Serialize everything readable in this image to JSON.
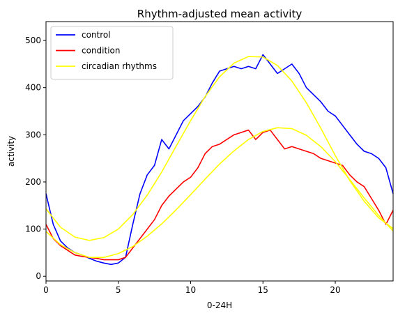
{
  "chart_data": {
    "type": "line",
    "title": "Rhythm-adjusted mean activity",
    "xlabel": "0-24H",
    "ylabel": "activity",
    "xlim": [
      0,
      24
    ],
    "ylim": [
      -10,
      540
    ],
    "xticks": [
      0,
      5,
      10,
      15,
      20
    ],
    "xtick_labels": [
      "0",
      "5",
      "10",
      "15",
      "20"
    ],
    "yticks": [
      0,
      100,
      200,
      300,
      400,
      500
    ],
    "ytick_labels": [
      "0",
      "100",
      "200",
      "300",
      "400",
      "500"
    ],
    "grid": false,
    "legend_position": "top-left",
    "series": [
      {
        "name": "control",
        "color": "#0000ff",
        "x": [
          0,
          0.5,
          1,
          1.5,
          2,
          2.5,
          3,
          3.5,
          4,
          4.5,
          5,
          5.5,
          6,
          6.5,
          7,
          7.5,
          8,
          8.5,
          9,
          9.5,
          10,
          10.5,
          11,
          11.5,
          12,
          12.5,
          13,
          13.5,
          14,
          14.5,
          15,
          15.5,
          16,
          16.5,
          17,
          17.5,
          18,
          18.5,
          19,
          19.5,
          20,
          20.5,
          21,
          21.5,
          22,
          22.5,
          23,
          23.5,
          24
        ],
        "y": [
          175,
          110,
          75,
          60,
          50,
          45,
          38,
          32,
          28,
          25,
          28,
          40,
          110,
          175,
          215,
          235,
          290,
          270,
          300,
          330,
          345,
          360,
          380,
          410,
          435,
          440,
          445,
          440,
          445,
          440,
          470,
          450,
          430,
          440,
          450,
          430,
          400,
          385,
          370,
          350,
          340,
          320,
          300,
          280,
          265,
          260,
          250,
          230,
          175
        ]
      },
      {
        "name": "condition",
        "color": "#ff0000",
        "x": [
          0,
          0.5,
          1,
          1.5,
          2,
          2.5,
          3,
          3.5,
          4,
          4.5,
          5,
          5.5,
          6,
          6.5,
          7,
          7.5,
          8,
          8.5,
          9,
          9.5,
          10,
          10.5,
          11,
          11.5,
          12,
          12.5,
          13,
          13.5,
          14,
          14.5,
          15,
          15.5,
          16,
          16.5,
          17,
          17.5,
          18,
          18.5,
          19,
          19.5,
          20,
          20.5,
          21,
          21.5,
          22,
          22.5,
          23,
          23.5,
          24
        ],
        "y": [
          110,
          80,
          65,
          55,
          45,
          42,
          40,
          38,
          35,
          35,
          35,
          40,
          60,
          80,
          100,
          120,
          150,
          170,
          185,
          200,
          210,
          230,
          260,
          275,
          280,
          290,
          300,
          305,
          310,
          290,
          305,
          310,
          290,
          270,
          275,
          270,
          265,
          260,
          250,
          245,
          240,
          235,
          215,
          200,
          190,
          165,
          140,
          110,
          140
        ]
      },
      {
        "name": "circadian rhythms",
        "color": "#ffff00",
        "x": [
          0,
          1,
          2,
          3,
          4,
          5,
          6,
          7,
          8,
          9,
          10,
          11,
          12,
          13,
          14,
          15,
          16,
          17,
          18,
          19,
          20,
          21,
          22,
          23,
          24
        ],
        "y": [
          143,
          104,
          83,
          76,
          82,
          100,
          131,
          172,
          221,
          276,
          330,
          381,
          423,
          452,
          466,
          465,
          447,
          414,
          368,
          314,
          256,
          203,
          159,
          124,
          101
        ]
      },
      {
        "name": "",
        "color": "#ffff00",
        "x": [
          0,
          1,
          2,
          3,
          4,
          5,
          6,
          7,
          8,
          9,
          10,
          11,
          12,
          13,
          14,
          15,
          16,
          17,
          18,
          19,
          20,
          21,
          22,
          23,
          24
        ],
        "y": [
          95,
          67,
          50,
          40,
          40,
          48,
          63,
          85,
          111,
          141,
          173,
          206,
          238,
          266,
          290,
          307,
          315,
          313,
          299,
          275,
          243,
          205,
          166,
          129,
          96
        ]
      }
    ]
  }
}
